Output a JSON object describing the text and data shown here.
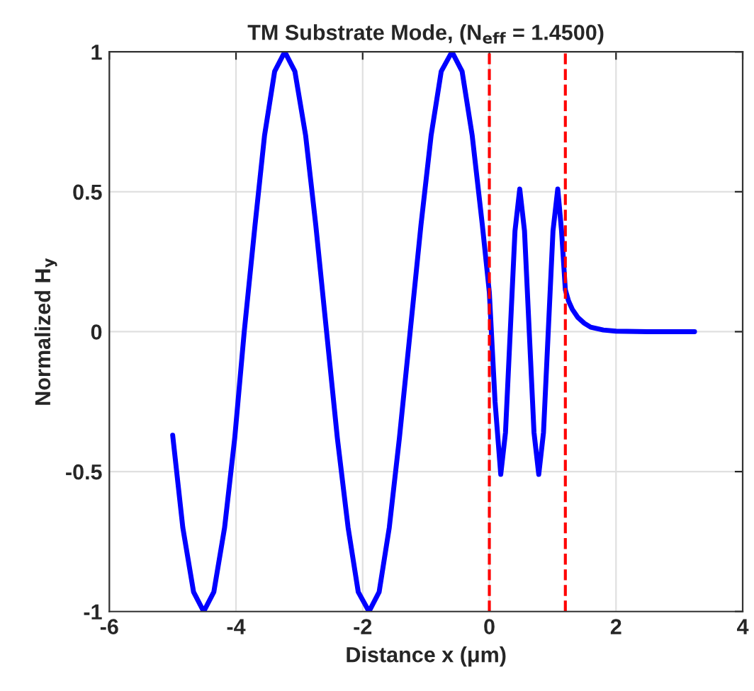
{
  "chart_data": {
    "type": "line",
    "title": "TM Substrate Mode, (N$_{eff}$ = 1.4500)",
    "xlabel": "Distance x (μm)",
    "ylabel": "Normalized H$_{y}$",
    "series": [
      {
        "color": "#0000ff",
        "x": [
          -5.0,
          -4.84,
          -4.67,
          -4.51,
          -4.35,
          -4.18,
          -4.02,
          -3.87,
          -3.7,
          -3.55,
          -3.39,
          -3.23,
          -3.07,
          -2.9,
          -2.74,
          -2.57,
          -2.4,
          -2.23,
          -2.07,
          -1.9,
          -1.74,
          -1.58,
          -1.42,
          -1.25,
          -1.08,
          -0.92,
          -0.76,
          -0.59,
          -0.43,
          -0.27,
          -0.11,
          0,
          0.09,
          0.18,
          0.255,
          0.33,
          0.405,
          0.48,
          0.555,
          0.63,
          0.705,
          0.78,
          0.855,
          0.93,
          1.005,
          1.08,
          1.14,
          1.2,
          1.25,
          1.31,
          1.4,
          1.5,
          1.6,
          1.8,
          2.0,
          2.5,
          3.24
        ],
        "values": [
          -0.37,
          -0.7,
          -0.93,
          -1,
          -0.93,
          -0.7,
          -0.38,
          0,
          0.38,
          0.7,
          0.93,
          1,
          0.93,
          0.7,
          0.38,
          0,
          -0.38,
          -0.7,
          -0.93,
          -1,
          -0.93,
          -0.7,
          -0.38,
          0,
          0.38,
          0.7,
          0.93,
          1,
          0.93,
          0.7,
          0.38,
          0.14,
          -0.25,
          -0.51,
          -0.36,
          0,
          0.36,
          0.51,
          0.36,
          0,
          -0.36,
          -0.51,
          -0.36,
          0,
          0.36,
          0.51,
          0.36,
          0.15,
          0.11,
          0.08,
          0.05,
          0.03,
          0.016,
          0.006,
          0.002,
          0,
          0
        ]
      }
    ],
    "xlim": [
      -6,
      4
    ],
    "xticks": [
      -6,
      -4,
      -2,
      0,
      2,
      4
    ],
    "ylim": [
      -1,
      1
    ],
    "yticks": [
      -1,
      -0.5,
      0,
      0.5,
      1
    ],
    "ref_lines": [
      {
        "axis": "x",
        "value": 0,
        "color": "#ff0000",
        "line_style": "dashed"
      },
      {
        "axis": "x",
        "value": 1.2,
        "color": "#ff0000",
        "line_style": "dashed"
      }
    ],
    "grid": true,
    "line_style": "solid",
    "marker": "none"
  }
}
